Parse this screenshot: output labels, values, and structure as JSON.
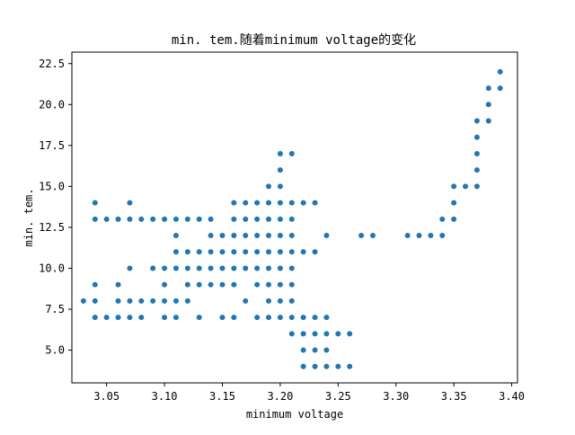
{
  "chart_data": {
    "type": "scatter",
    "title": "min. tem.随着minimum voltage的变化",
    "xlabel": "minimum voltage",
    "ylabel": "min. tem.",
    "xlim": [
      3.02,
      3.405
    ],
    "ylim": [
      3.0,
      23.2
    ],
    "x_ticks": [
      3.05,
      3.1,
      3.15,
      3.2,
      3.25,
      3.3,
      3.35,
      3.4
    ],
    "x_tick_labels": [
      "3.05",
      "3.10",
      "3.15",
      "3.20",
      "3.25",
      "3.30",
      "3.35",
      "3.40"
    ],
    "y_ticks": [
      5.0,
      7.5,
      10.0,
      12.5,
      15.0,
      17.5,
      20.0,
      22.5
    ],
    "y_tick_labels": [
      "5.0",
      "7.5",
      "10.0",
      "12.5",
      "15.0",
      "17.5",
      "20.0",
      "22.5"
    ],
    "grid": false,
    "legend": "none",
    "marker_color": "#1f77b4",
    "points": [
      [
        3.03,
        8
      ],
      [
        3.04,
        14
      ],
      [
        3.04,
        13
      ],
      [
        3.04,
        9
      ],
      [
        3.04,
        8
      ],
      [
        3.04,
        7
      ],
      [
        3.05,
        13
      ],
      [
        3.05,
        7
      ],
      [
        3.06,
        13
      ],
      [
        3.06,
        9
      ],
      [
        3.06,
        8
      ],
      [
        3.06,
        7
      ],
      [
        3.07,
        14
      ],
      [
        3.07,
        13
      ],
      [
        3.07,
        10
      ],
      [
        3.07,
        8
      ],
      [
        3.07,
        7
      ],
      [
        3.08,
        13
      ],
      [
        3.08,
        8
      ],
      [
        3.08,
        7
      ],
      [
        3.09,
        13
      ],
      [
        3.09,
        10
      ],
      [
        3.09,
        8
      ],
      [
        3.1,
        13
      ],
      [
        3.1,
        10
      ],
      [
        3.1,
        9
      ],
      [
        3.1,
        8
      ],
      [
        3.1,
        7
      ],
      [
        3.11,
        13
      ],
      [
        3.11,
        12
      ],
      [
        3.11,
        11
      ],
      [
        3.11,
        10
      ],
      [
        3.11,
        8
      ],
      [
        3.11,
        7
      ],
      [
        3.12,
        13
      ],
      [
        3.12,
        11
      ],
      [
        3.12,
        10
      ],
      [
        3.12,
        9
      ],
      [
        3.12,
        8
      ],
      [
        3.13,
        13
      ],
      [
        3.13,
        11
      ],
      [
        3.13,
        10
      ],
      [
        3.13,
        9
      ],
      [
        3.13,
        7
      ],
      [
        3.14,
        13
      ],
      [
        3.14,
        12
      ],
      [
        3.14,
        11
      ],
      [
        3.14,
        10
      ],
      [
        3.14,
        9
      ],
      [
        3.15,
        12
      ],
      [
        3.15,
        11
      ],
      [
        3.15,
        10
      ],
      [
        3.15,
        9
      ],
      [
        3.15,
        7
      ],
      [
        3.16,
        14
      ],
      [
        3.16,
        13
      ],
      [
        3.16,
        12
      ],
      [
        3.16,
        11
      ],
      [
        3.16,
        10
      ],
      [
        3.16,
        9
      ],
      [
        3.16,
        7
      ],
      [
        3.17,
        14
      ],
      [
        3.17,
        13
      ],
      [
        3.17,
        12
      ],
      [
        3.17,
        11
      ],
      [
        3.17,
        10
      ],
      [
        3.17,
        8
      ],
      [
        3.18,
        14
      ],
      [
        3.18,
        13
      ],
      [
        3.18,
        12
      ],
      [
        3.18,
        11
      ],
      [
        3.18,
        10
      ],
      [
        3.18,
        9
      ],
      [
        3.18,
        7
      ],
      [
        3.19,
        15
      ],
      [
        3.19,
        14
      ],
      [
        3.19,
        13
      ],
      [
        3.19,
        12
      ],
      [
        3.19,
        11
      ],
      [
        3.19,
        10
      ],
      [
        3.19,
        9
      ],
      [
        3.19,
        8
      ],
      [
        3.19,
        7
      ],
      [
        3.2,
        17
      ],
      [
        3.2,
        16
      ],
      [
        3.2,
        15
      ],
      [
        3.2,
        14
      ],
      [
        3.2,
        13
      ],
      [
        3.2,
        12
      ],
      [
        3.2,
        11
      ],
      [
        3.2,
        10
      ],
      [
        3.2,
        9
      ],
      [
        3.2,
        8
      ],
      [
        3.2,
        7
      ],
      [
        3.21,
        17
      ],
      [
        3.21,
        14
      ],
      [
        3.21,
        13
      ],
      [
        3.21,
        12
      ],
      [
        3.21,
        11
      ],
      [
        3.21,
        10
      ],
      [
        3.21,
        9
      ],
      [
        3.21,
        8
      ],
      [
        3.21,
        7
      ],
      [
        3.21,
        6
      ],
      [
        3.22,
        14
      ],
      [
        3.22,
        11
      ],
      [
        3.22,
        7
      ],
      [
        3.22,
        6
      ],
      [
        3.22,
        5
      ],
      [
        3.22,
        4
      ],
      [
        3.23,
        14
      ],
      [
        3.23,
        11
      ],
      [
        3.23,
        7
      ],
      [
        3.23,
        6
      ],
      [
        3.23,
        5
      ],
      [
        3.23,
        4
      ],
      [
        3.24,
        12
      ],
      [
        3.24,
        7
      ],
      [
        3.24,
        6
      ],
      [
        3.24,
        5
      ],
      [
        3.24,
        4
      ],
      [
        3.25,
        6
      ],
      [
        3.25,
        4
      ],
      [
        3.26,
        6
      ],
      [
        3.26,
        4
      ],
      [
        3.27,
        12
      ],
      [
        3.28,
        12
      ],
      [
        3.31,
        12
      ],
      [
        3.32,
        12
      ],
      [
        3.33,
        12
      ],
      [
        3.34,
        13
      ],
      [
        3.34,
        12
      ],
      [
        3.35,
        15
      ],
      [
        3.35,
        14
      ],
      [
        3.35,
        13
      ],
      [
        3.36,
        15
      ],
      [
        3.37,
        19
      ],
      [
        3.37,
        18
      ],
      [
        3.37,
        17
      ],
      [
        3.37,
        16
      ],
      [
        3.37,
        15
      ],
      [
        3.38,
        21
      ],
      [
        3.38,
        20
      ],
      [
        3.38,
        19
      ],
      [
        3.39,
        22
      ],
      [
        3.39,
        21
      ]
    ]
  }
}
